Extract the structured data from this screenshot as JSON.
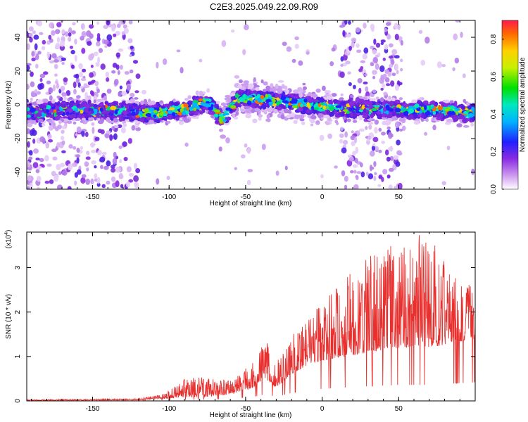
{
  "title": "C2E3.2025.049.22.09.R09",
  "colors": {
    "snr_line": "#e8302e",
    "spectrogram_background": "#ffffff",
    "axis": "#000000"
  },
  "chart_data": [
    {
      "type": "heatmap",
      "name": "spectrogram",
      "xlabel": "Height of straight line (km)",
      "ylabel": "Frequency (Hz)",
      "xlim": [
        -193,
        100
      ],
      "ylim": [
        -50,
        50
      ],
      "xticks": [
        -150,
        -100,
        -50,
        0,
        50
      ],
      "yticks": [
        -40,
        -20,
        0,
        20,
        40
      ],
      "colormap": "rainbow (white/purple low to red high)",
      "band_center_hz": [
        {
          "x": -185,
          "y": -4
        },
        {
          "x": -160,
          "y": -3
        },
        {
          "x": -130,
          "y": -4
        },
        {
          "x": -110,
          "y": -5
        },
        {
          "x": -90,
          "y": -3
        },
        {
          "x": -75,
          "y": 2
        },
        {
          "x": -65,
          "y": -9
        },
        {
          "x": -55,
          "y": 4
        },
        {
          "x": -40,
          "y": 3
        },
        {
          "x": -25,
          "y": 2
        },
        {
          "x": -10,
          "y": 0
        },
        {
          "x": 10,
          "y": -2
        },
        {
          "x": 55,
          "y": -3
        },
        {
          "x": 75,
          "y": -3
        },
        {
          "x": 97,
          "y": -5
        }
      ],
      "noisy_regions_km": [
        [
          -193,
          -120
        ],
        [
          12,
          52
        ]
      ],
      "colorbar": {
        "label": "Normalized spectral amplitude",
        "range": [
          0.0,
          0.9
        ],
        "ticks": [
          "0.0",
          "0.2",
          "0.4",
          "0.6",
          "0.8"
        ]
      }
    },
    {
      "type": "line",
      "name": "snr",
      "xlabel": "Height of straight line (km)",
      "ylabel": "SNR (10 * v/v)",
      "y_multiplier": "(x10",
      "y_multiplier_exp": "4",
      "y_multiplier_close": ")",
      "xlim": [
        -193,
        100
      ],
      "ylim": [
        0,
        3.8
      ],
      "xticks": [
        -150,
        -100,
        -50,
        0,
        50
      ],
      "yticks": [
        0,
        1,
        2,
        3
      ],
      "envelope": [
        {
          "x": -193,
          "base": 0.01,
          "peak": 0.03
        },
        {
          "x": -120,
          "base": 0.02,
          "peak": 0.05
        },
        {
          "x": -105,
          "base": 0.05,
          "peak": 0.15
        },
        {
          "x": -90,
          "base": 0.08,
          "peak": 0.5
        },
        {
          "x": -75,
          "base": 0.1,
          "peak": 0.55
        },
        {
          "x": -60,
          "base": 0.15,
          "peak": 0.45
        },
        {
          "x": -45,
          "base": 0.3,
          "peak": 0.9
        },
        {
          "x": -37,
          "base": 0.5,
          "peak": 1.4
        },
        {
          "x": -30,
          "base": 0.3,
          "peak": 0.9
        },
        {
          "x": -20,
          "base": 0.6,
          "peak": 1.5
        },
        {
          "x": -10,
          "base": 0.8,
          "peak": 1.8
        },
        {
          "x": 0,
          "base": 0.9,
          "peak": 2.3
        },
        {
          "x": 15,
          "base": 1.0,
          "peak": 2.8
        },
        {
          "x": 30,
          "base": 1.1,
          "peak": 3.3
        },
        {
          "x": 50,
          "base": 1.2,
          "peak": 3.6
        },
        {
          "x": 70,
          "base": 1.2,
          "peak": 3.8
        },
        {
          "x": 85,
          "base": 1.3,
          "peak": 3.0
        },
        {
          "x": 100,
          "base": 1.4,
          "peak": 2.5
        }
      ]
    }
  ]
}
